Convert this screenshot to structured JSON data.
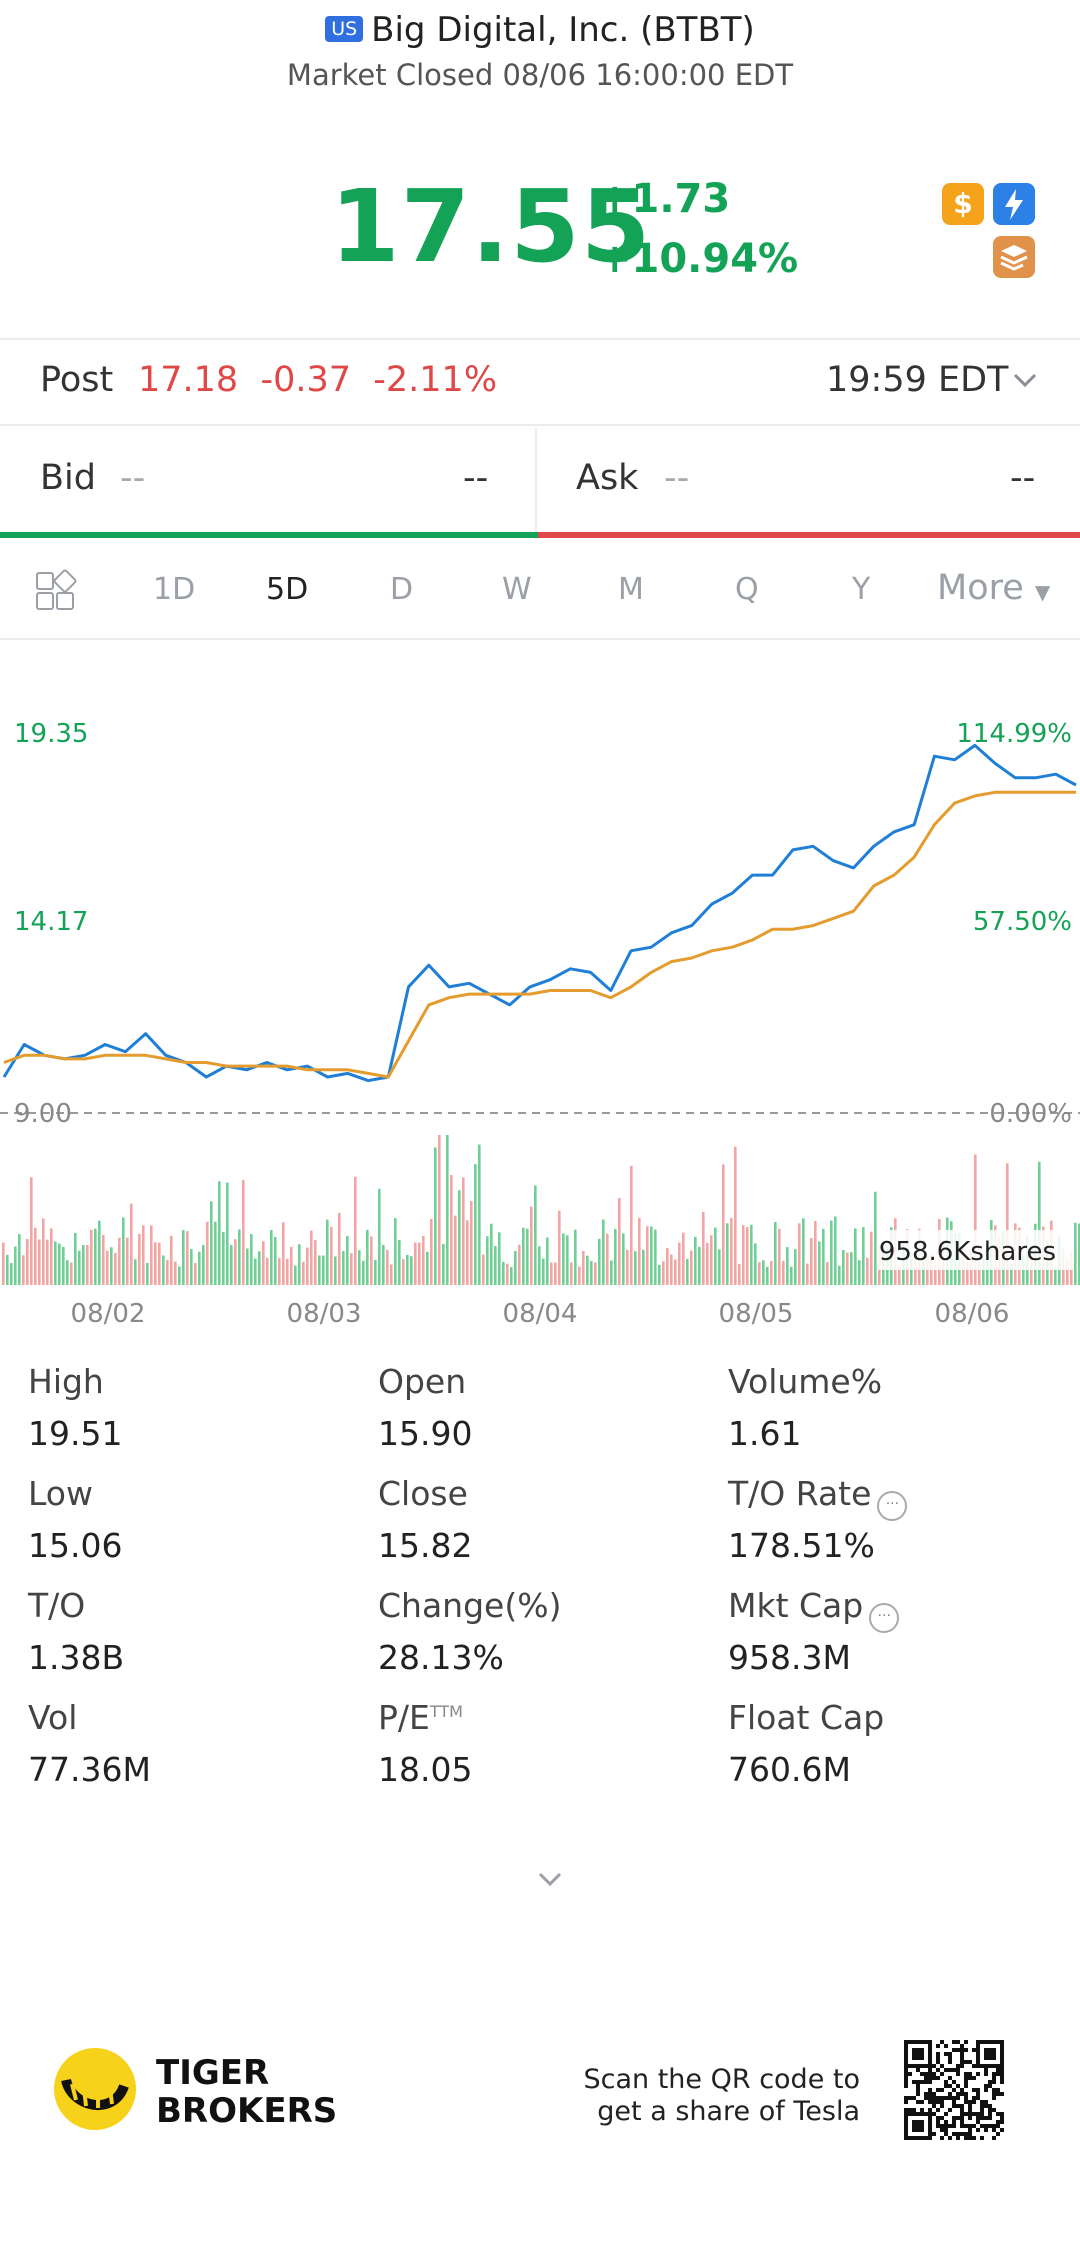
{
  "header": {
    "market_badge": "US",
    "title": "Big Digital, Inc. (BTBT)",
    "status": "Market Closed 08/06 16:00:00 EDT"
  },
  "quote": {
    "price": "17.55",
    "change": "+1.73",
    "change_pct": "+10.94%",
    "color_up": "#14a356",
    "color_down": "#e04848",
    "icons": [
      "dollar-icon",
      "lightning-icon",
      "layers-icon"
    ]
  },
  "post": {
    "label": "Post",
    "values": "17.18  -0.37  -2.11%",
    "time": "19:59 EDT"
  },
  "bid_ask": {
    "bid_label": "Bid",
    "bid_value": "--",
    "bid_size": "--",
    "ask_label": "Ask",
    "ask_value": "--",
    "ask_size": "--"
  },
  "tabs": {
    "items": [
      "1D",
      "5D",
      "D",
      "W",
      "M",
      "Q",
      "Y"
    ],
    "active": "5D",
    "more": "More"
  },
  "chart_data": {
    "type": "line",
    "y_left_labels": [
      "19.35",
      "14.17",
      "9.00"
    ],
    "y_right_labels": [
      "114.99%",
      "57.50%",
      "0.00%"
    ],
    "x_labels": [
      "08/02",
      "08/03",
      "08/04",
      "08/05",
      "08/06"
    ],
    "volume_label": "958.6Kshares",
    "ylim": [
      9.0,
      19.35
    ],
    "series": [
      {
        "values": [
          10.0,
          10.9,
          10.6,
          10.5,
          10.6,
          10.9,
          10.7,
          11.2,
          10.6,
          10.4,
          10.0,
          10.3,
          10.2,
          10.4,
          10.2,
          10.3,
          10.0,
          10.1,
          9.9,
          10.0,
          12.5,
          13.1,
          12.5,
          12.6,
          12.3,
          12.0,
          12.5,
          12.7,
          13.0,
          12.9,
          12.4,
          13.5,
          13.6,
          14.0,
          14.2,
          14.8,
          15.1,
          15.6,
          15.6,
          16.3,
          16.4,
          16.0,
          15.8,
          16.4,
          16.8,
          17.0,
          18.9,
          18.8,
          19.2,
          18.7,
          18.3,
          18.3,
          18.4,
          18.1
        ]
      },
      {
        "values": [
          10.4,
          10.6,
          10.6,
          10.5,
          10.5,
          10.6,
          10.6,
          10.6,
          10.5,
          10.4,
          10.4,
          10.3,
          10.3,
          10.3,
          10.3,
          10.2,
          10.2,
          10.2,
          10.1,
          10.0,
          11.0,
          12.0,
          12.2,
          12.3,
          12.3,
          12.3,
          12.3,
          12.4,
          12.4,
          12.4,
          12.2,
          12.5,
          12.9,
          13.2,
          13.3,
          13.5,
          13.6,
          13.8,
          14.1,
          14.1,
          14.2,
          14.4,
          14.6,
          15.3,
          15.6,
          16.1,
          17.0,
          17.6,
          17.8,
          17.9,
          17.9,
          17.9,
          17.9,
          17.9
        ]
      }
    ],
    "grid": false
  },
  "stats": [
    {
      "label": "High",
      "value": "19.51"
    },
    {
      "label": "Open",
      "value": "15.90"
    },
    {
      "label": "Volume%",
      "value": "1.61"
    },
    {
      "label": "Low",
      "value": "15.06"
    },
    {
      "label": "Close",
      "value": "15.82"
    },
    {
      "label": "T/O Rate",
      "value": "178.51%"
    },
    {
      "label": "T/O",
      "value": "1.38B"
    },
    {
      "label": "Change(%)",
      "value": "28.13%"
    },
    {
      "label": "Mkt Cap",
      "value": "958.3M"
    },
    {
      "label": "Vol",
      "value": "77.36M"
    },
    {
      "label": "P/E",
      "value": "18.05"
    },
    {
      "label": "Float Cap",
      "value": "760.6M"
    }
  ],
  "pe_suffix": "TTM",
  "footer": {
    "brand_line1": "TIGER",
    "brand_line2": "BROKERS",
    "scan_line1": "Scan the QR code to",
    "scan_line2": "get a share of Tesla"
  }
}
